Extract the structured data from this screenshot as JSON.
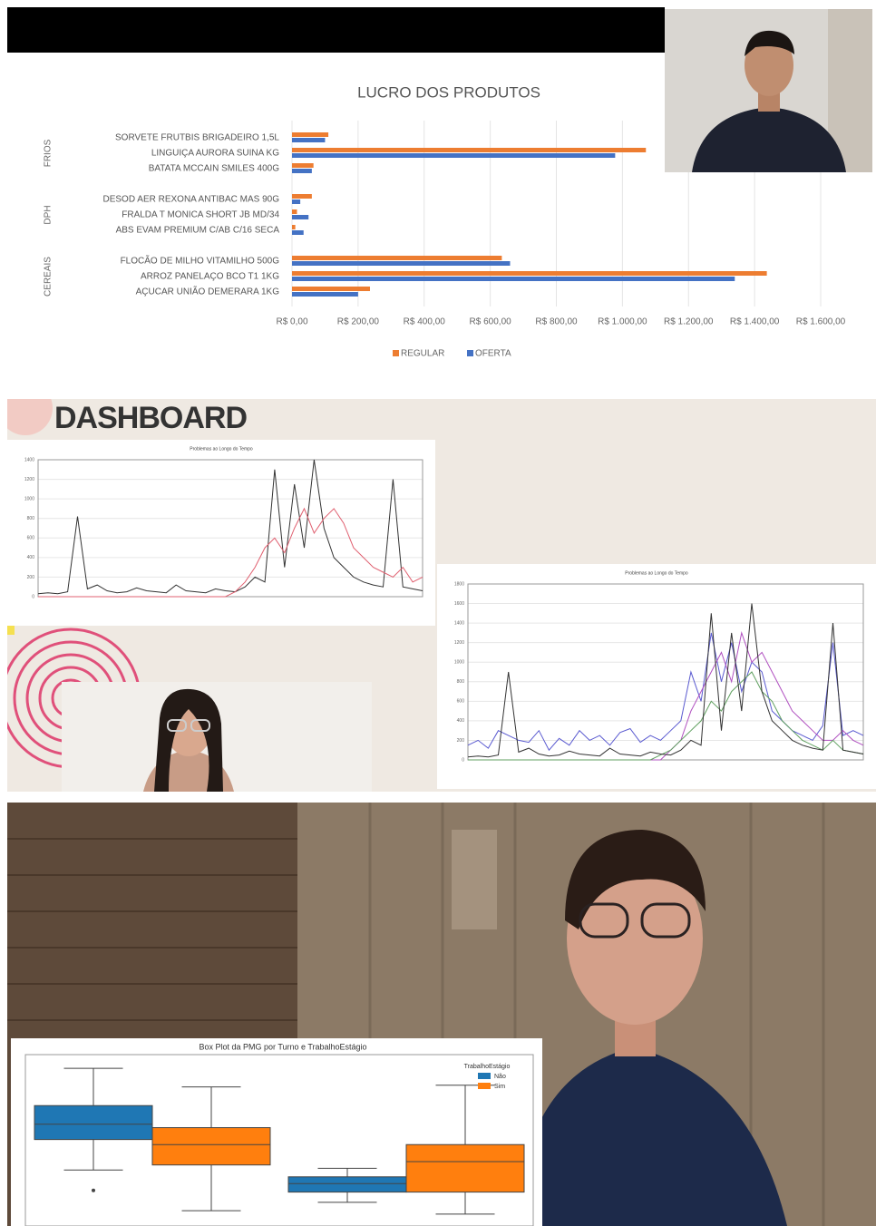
{
  "chart_data": [
    {
      "type": "hbar",
      "title": "LUCRO DOS PRODUTOS",
      "group_names": [
        "FRIOS",
        "DPH",
        "CEREAIS"
      ],
      "categories": [
        "SORVETE FRUTBIS BRIGADEIRO 1,5L",
        "LINGUIÇA AURORA SUINA KG",
        "BATATA MCCAIN SMILES 400G",
        "DESOD AER REXONA ANTIBAC MAS 90G",
        "FRALDA T MONICA SHORT JB MD/34",
        "ABS EVAM PREMIUM C/AB C/16 SECA",
        "FLOCÃO DE MILHO VITAMILHO 500G",
        "ARROZ PANELAÇO BCO T1 1KG",
        "AÇUCAR UNIÃO DEMERARA 1KG"
      ],
      "series": [
        {
          "name": "REGULAR",
          "color": "#ed7d31",
          "values": [
            110,
            1071,
            65,
            60,
            15,
            10,
            635,
            1437,
            236
          ]
        },
        {
          "name": "OFERTA",
          "color": "#4472c4",
          "values": [
            100,
            978,
            60,
            25,
            50,
            35,
            660,
            1340,
            200
          ]
        }
      ],
      "xlim": [
        0,
        1600
      ],
      "xticks": [
        {
          "value": 0,
          "label": "R$ 0,00"
        },
        {
          "value": 200,
          "label": "R$ 200,00"
        },
        {
          "value": 400,
          "label": "R$ 400,00"
        },
        {
          "value": 600,
          "label": "R$ 600,00"
        },
        {
          "value": 800,
          "label": "R$ 800,00"
        },
        {
          "value": 1000,
          "label": "R$ 1.000,00"
        },
        {
          "value": 1200,
          "label": "R$ 1.200,00"
        },
        {
          "value": 1400,
          "label": "R$ 1.400,00"
        },
        {
          "value": 1600,
          "label": "R$ 1.600,00"
        }
      ],
      "grid": true,
      "legend": "bottom"
    },
    {
      "type": "line",
      "title": "Problemas ao Longo do Tempo",
      "ylim": [
        0,
        1400
      ],
      "yticks": [
        0,
        200,
        400,
        600,
        800,
        1000,
        1200,
        1400
      ],
      "grid": true,
      "series": [
        {
          "color": "#333333",
          "values": [
            30,
            40,
            30,
            50,
            820,
            80,
            120,
            60,
            40,
            50,
            90,
            60,
            50,
            40,
            120,
            60,
            50,
            40,
            80,
            60,
            50,
            100,
            200,
            150,
            1300,
            300,
            1150,
            500,
            1400,
            700,
            400,
            300,
            200,
            150,
            120,
            100,
            1200,
            100,
            80,
            60
          ]
        },
        {
          "color": "#e06070",
          "values": [
            0,
            0,
            0,
            0,
            0,
            0,
            0,
            0,
            0,
            0,
            0,
            0,
            0,
            0,
            0,
            0,
            0,
            0,
            0,
            0,
            50,
            150,
            300,
            500,
            600,
            450,
            700,
            900,
            650,
            800,
            900,
            750,
            500,
            400,
            300,
            250,
            200,
            300,
            150,
            200
          ]
        }
      ]
    },
    {
      "type": "line",
      "title": "Problemas ao Longo do Tempo",
      "ylim": [
        0,
        1800
      ],
      "yticks": [
        0,
        200,
        400,
        600,
        800,
        1000,
        1200,
        1400,
        1600,
        1800
      ],
      "grid": true,
      "series": [
        {
          "color": "#5a5ad0",
          "values": [
            150,
            200,
            120,
            300,
            250,
            200,
            180,
            300,
            100,
            220,
            150,
            300,
            200,
            250,
            150,
            280,
            320,
            180,
            250,
            200,
            300,
            400,
            900,
            600,
            1300,
            800,
            1200,
            700,
            1000,
            900,
            500,
            400,
            300,
            250,
            200,
            350,
            1200,
            250,
            300,
            250
          ]
        },
        {
          "color": "#b050c0",
          "values": [
            0,
            0,
            0,
            0,
            0,
            0,
            0,
            0,
            0,
            0,
            0,
            0,
            0,
            0,
            0,
            0,
            0,
            0,
            0,
            0,
            100,
            200,
            500,
            700,
            900,
            1100,
            800,
            1300,
            1000,
            1100,
            900,
            700,
            500,
            400,
            300,
            200,
            200,
            300,
            200,
            150
          ]
        },
        {
          "color": "#60a060",
          "values": [
            0,
            0,
            0,
            0,
            0,
            0,
            0,
            0,
            0,
            0,
            0,
            0,
            0,
            0,
            0,
            0,
            0,
            0,
            0,
            50,
            100,
            200,
            300,
            400,
            600,
            500,
            700,
            800,
            900,
            700,
            600,
            400,
            300,
            200,
            150,
            100,
            200,
            100,
            80,
            60
          ]
        },
        {
          "color": "#333333",
          "values": [
            30,
            40,
            30,
            50,
            900,
            80,
            120,
            60,
            40,
            50,
            90,
            60,
            50,
            40,
            120,
            60,
            50,
            40,
            80,
            60,
            50,
            100,
            200,
            150,
            1500,
            300,
            1300,
            500,
            1600,
            700,
            400,
            300,
            200,
            150,
            120,
            100,
            1400,
            100,
            80,
            60
          ]
        }
      ]
    },
    {
      "type": "box",
      "title": "Box Plot da PMG por Turno e TrabalhoEstágio",
      "legend_title": "TrabalhoEstágio",
      "ylim": [
        2,
        12
      ],
      "series": [
        {
          "name": "Não",
          "color": "#1f77b4",
          "boxes": [
            {
              "whislo": 5.3,
              "q1": 7.1,
              "median": 8.0,
              "q3": 9.1,
              "whishi": 11.3,
              "outliers": [
                4.1
              ]
            },
            {
              "whislo": 3.4,
              "q1": 4.0,
              "median": 4.5,
              "q3": 4.9,
              "whishi": 5.4,
              "outliers": []
            }
          ]
        },
        {
          "name": "Sim",
          "color": "#ff7f0e",
          "boxes": [
            {
              "whislo": 2.9,
              "q1": 5.6,
              "median": 6.8,
              "q3": 7.8,
              "whishi": 10.2,
              "outliers": []
            },
            {
              "whislo": 2.7,
              "q1": 4.0,
              "median": 5.8,
              "q3": 6.8,
              "whishi": 10.3,
              "outliers": []
            }
          ]
        }
      ]
    }
  ],
  "dashboard": {
    "title": "DASHBOARD"
  }
}
